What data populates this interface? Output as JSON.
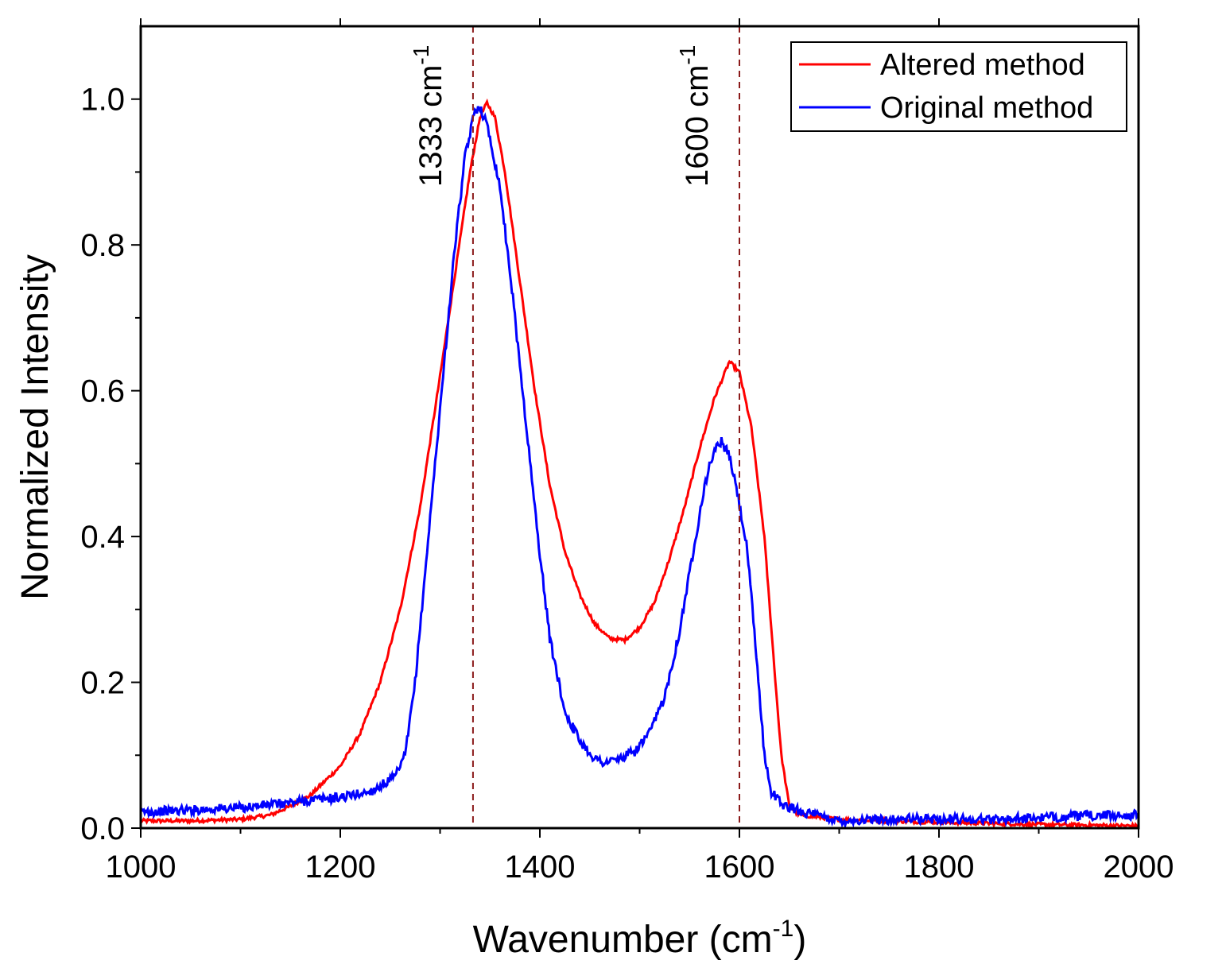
{
  "chart_data": {
    "type": "line",
    "title": "",
    "xlabel": "Wavenumber (cm",
    "xlabel_sup": "-1",
    "xlabel_suffix": ")",
    "ylabel": "Normalized Intensity",
    "xlim": [
      1000,
      2000
    ],
    "ylim": [
      0,
      1.1
    ],
    "x_ticks": [
      1000,
      1200,
      1400,
      1600,
      1800,
      2000
    ],
    "x_tick_labels": [
      "1000",
      "1200",
      "1400",
      "1600",
      "1800",
      "2000"
    ],
    "y_ticks": [
      0.0,
      0.2,
      0.4,
      0.6,
      0.8,
      1.0
    ],
    "y_tick_labels": [
      "0.0",
      "0.2",
      "0.4",
      "0.6",
      "0.8",
      "1.0"
    ],
    "grid": false,
    "legend_position": "top-right",
    "reference_lines": [
      {
        "x": 1333,
        "label": "1333 cm",
        "label_sup": "-1",
        "color": "#8b1a1a"
      },
      {
        "x": 1600,
        "label": "1600 cm",
        "label_sup": "-1",
        "color": "#8b1a1a"
      }
    ],
    "series": [
      {
        "name": "Altered method",
        "color": "#ff0000",
        "points": [
          [
            1000,
            0.01
          ],
          [
            1050,
            0.01
          ],
          [
            1100,
            0.012
          ],
          [
            1130,
            0.018
          ],
          [
            1150,
            0.03
          ],
          [
            1170,
            0.045
          ],
          [
            1200,
            0.085
          ],
          [
            1220,
            0.13
          ],
          [
            1240,
            0.2
          ],
          [
            1260,
            0.3
          ],
          [
            1280,
            0.44
          ],
          [
            1300,
            0.62
          ],
          [
            1315,
            0.76
          ],
          [
            1330,
            0.9
          ],
          [
            1340,
            0.975
          ],
          [
            1347,
            0.995
          ],
          [
            1355,
            0.975
          ],
          [
            1365,
            0.9
          ],
          [
            1380,
            0.75
          ],
          [
            1395,
            0.6
          ],
          [
            1410,
            0.47
          ],
          [
            1425,
            0.38
          ],
          [
            1440,
            0.32
          ],
          [
            1455,
            0.28
          ],
          [
            1470,
            0.26
          ],
          [
            1485,
            0.258
          ],
          [
            1500,
            0.275
          ],
          [
            1515,
            0.31
          ],
          [
            1530,
            0.37
          ],
          [
            1545,
            0.44
          ],
          [
            1560,
            0.52
          ],
          [
            1575,
            0.59
          ],
          [
            1590,
            0.64
          ],
          [
            1600,
            0.625
          ],
          [
            1612,
            0.55
          ],
          [
            1625,
            0.4
          ],
          [
            1635,
            0.22
          ],
          [
            1642,
            0.1
          ],
          [
            1650,
            0.03
          ],
          [
            1660,
            0.018
          ],
          [
            1700,
            0.012
          ],
          [
            1800,
            0.008
          ],
          [
            1900,
            0.005
          ],
          [
            2000,
            0.003
          ]
        ]
      },
      {
        "name": "Original method",
        "color": "#0000ff",
        "points": [
          [
            1000,
            0.022
          ],
          [
            1050,
            0.025
          ],
          [
            1100,
            0.028
          ],
          [
            1150,
            0.035
          ],
          [
            1180,
            0.04
          ],
          [
            1200,
            0.042
          ],
          [
            1230,
            0.05
          ],
          [
            1255,
            0.07
          ],
          [
            1265,
            0.1
          ],
          [
            1275,
            0.2
          ],
          [
            1285,
            0.35
          ],
          [
            1295,
            0.5
          ],
          [
            1305,
            0.65
          ],
          [
            1315,
            0.8
          ],
          [
            1325,
            0.92
          ],
          [
            1335,
            0.985
          ],
          [
            1340,
            0.99
          ],
          [
            1348,
            0.96
          ],
          [
            1360,
            0.88
          ],
          [
            1372,
            0.74
          ],
          [
            1385,
            0.57
          ],
          [
            1398,
            0.4
          ],
          [
            1410,
            0.26
          ],
          [
            1425,
            0.16
          ],
          [
            1440,
            0.12
          ],
          [
            1455,
            0.095
          ],
          [
            1465,
            0.09
          ],
          [
            1480,
            0.095
          ],
          [
            1495,
            0.105
          ],
          [
            1510,
            0.13
          ],
          [
            1525,
            0.18
          ],
          [
            1540,
            0.27
          ],
          [
            1555,
            0.39
          ],
          [
            1565,
            0.47
          ],
          [
            1575,
            0.52
          ],
          [
            1582,
            0.53
          ],
          [
            1590,
            0.51
          ],
          [
            1598,
            0.46
          ],
          [
            1608,
            0.38
          ],
          [
            1618,
            0.22
          ],
          [
            1625,
            0.1
          ],
          [
            1632,
            0.05
          ],
          [
            1645,
            0.03
          ],
          [
            1670,
            0.02
          ],
          [
            1700,
            0.01
          ],
          [
            1750,
            0.012
          ],
          [
            1800,
            0.013
          ],
          [
            1850,
            0.012
          ],
          [
            1900,
            0.014
          ],
          [
            1950,
            0.017
          ],
          [
            2000,
            0.018
          ]
        ]
      }
    ]
  }
}
